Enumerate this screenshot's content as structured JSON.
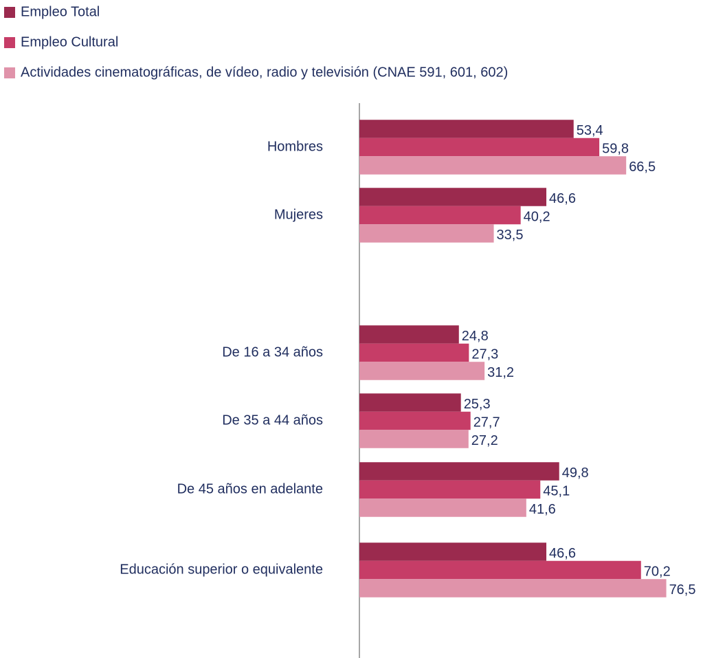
{
  "chart_data": {
    "type": "hbar",
    "categories": [
      "Hombres",
      "Mujeres",
      null,
      "De 16 a 34 años",
      "De 35 a 44 años",
      "De 45 años en adelante",
      null,
      "Educación superior o equivalente"
    ],
    "series": [
      {
        "name": "Empleo Total",
        "color": "#9b2a4e",
        "values": [
          53.4,
          46.6,
          null,
          24.8,
          25.3,
          49.8,
          null,
          46.6
        ],
        "value_labels": [
          "53,4",
          "46,6",
          null,
          "24,8",
          "25,3",
          "49,8",
          null,
          "46,6"
        ]
      },
      {
        "name": "Empleo Cultural",
        "color": "#c63d67",
        "values": [
          59.8,
          40.2,
          null,
          27.3,
          27.7,
          45.1,
          null,
          70.2
        ],
        "value_labels": [
          "59,8",
          "40,2",
          null,
          "27,3",
          "27,7",
          "45,1",
          null,
          "70,2"
        ]
      },
      {
        "name": "Actividades cinematográficas, de vídeo, radio y televisión (CNAE 591, 601, 602)",
        "color": "#e093aa",
        "values": [
          66.5,
          33.5,
          null,
          31.2,
          27.2,
          41.6,
          null,
          76.5
        ],
        "value_labels": [
          "66,5",
          "33,5",
          null,
          "31,2",
          "27,2",
          "41,6",
          null,
          "76,5"
        ]
      }
    ],
    "xlim": [
      0,
      80
    ]
  }
}
